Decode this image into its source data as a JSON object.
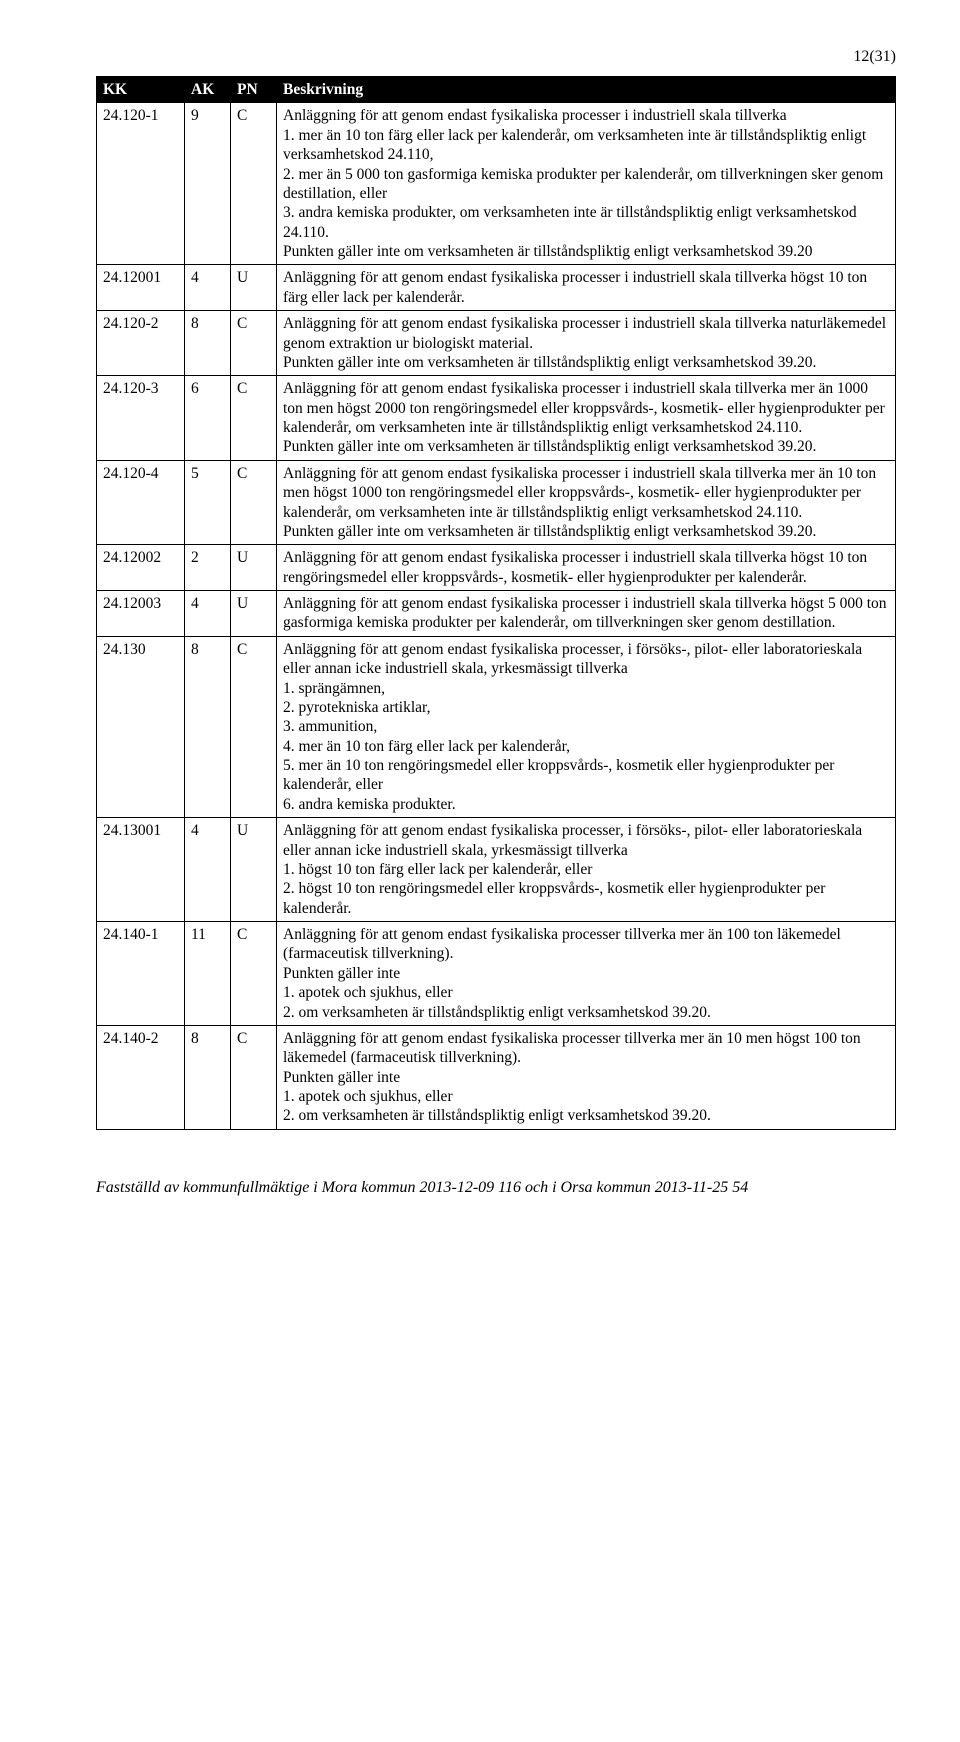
{
  "page_number": "12(31)",
  "columns": {
    "kk": "KK",
    "ak": "AK",
    "pn": "PN",
    "desc": "Beskrivning"
  },
  "rows": [
    {
      "kk": "24.120-1",
      "ak": "9",
      "pn": "C",
      "desc": "Anläggning för att genom endast fysikaliska processer i industriell skala tillverka\n1. mer än 10 ton färg eller lack per kalenderår, om verksamheten inte är tillståndspliktig enligt verksamhetskod 24.110,\n2. mer än 5 000 ton gasformiga kemiska produkter per kalenderår, om tillverkningen sker genom destillation, eller\n3. andra kemiska produkter, om verksamheten inte är tillståndspliktig enligt verksamhetskod 24.110.\nPunkten gäller inte om verksamheten är tillståndspliktig enligt verksamhetskod 39.20"
    },
    {
      "kk": "24.12001",
      "ak": "4",
      "pn": "U",
      "desc": "Anläggning för att genom endast fysikaliska processer i industriell skala tillverka högst 10 ton färg eller lack per kalenderår."
    },
    {
      "kk": "24.120-2",
      "ak": "8",
      "pn": "C",
      "desc": "Anläggning för att genom endast fysikaliska processer i industriell skala tillverka naturläkemedel genom extraktion ur biologiskt material.\nPunkten gäller inte om verksamheten är tillståndspliktig enligt verksamhetskod 39.20."
    },
    {
      "kk": "24.120-3",
      "ak": "6",
      "pn": "C",
      "desc": "Anläggning för att genom endast fysikaliska processer i industriell skala tillverka mer än 1000 ton men högst 2000 ton rengöringsmedel eller kroppsvårds-, kosmetik- eller hygienprodukter per kalenderår, om verksamheten inte är tillståndspliktig enligt verksamhetskod 24.110.\nPunkten gäller inte om verksamheten är tillståndspliktig enligt verksamhetskod 39.20."
    },
    {
      "kk": "24.120-4",
      "ak": "5",
      "pn": "C",
      "desc": "Anläggning för att genom endast fysikaliska processer i industriell skala tillverka mer än 10 ton men högst 1000 ton rengöringsmedel eller kroppsvårds-, kosmetik- eller hygienprodukter per kalenderår, om verksamheten inte är tillståndspliktig enligt verksamhetskod 24.110.\nPunkten gäller inte om verksamheten är tillståndspliktig enligt verksamhetskod 39.20."
    },
    {
      "kk": "24.12002",
      "ak": "2",
      "pn": "U",
      "desc": "Anläggning för att genom endast fysikaliska processer i industriell skala tillverka högst 10 ton rengöringsmedel eller kroppsvårds-, kosmetik- eller hygienprodukter per kalenderår."
    },
    {
      "kk": "24.12003",
      "ak": "4",
      "pn": "U",
      "desc": "Anläggning för att genom endast fysikaliska processer i industriell skala tillverka högst 5 000 ton gasformiga kemiska produkter per kalenderår, om tillverkningen sker genom destillation."
    },
    {
      "kk": "24.130",
      "ak": "8",
      "pn": "C",
      "desc": "Anläggning för att genom endast fysikaliska processer, i försöks-, pilot- eller laboratorieskala eller annan icke industriell skala, yrkesmässigt tillverka\n1. sprängämnen,\n2. pyrotekniska artiklar,\n3. ammunition,\n4. mer än 10 ton färg eller lack per kalenderår,\n5. mer än 10 ton rengöringsmedel eller kroppsvårds-, kosmetik eller hygienprodukter per kalenderår, eller\n6. andra kemiska produkter."
    },
    {
      "kk": "24.13001",
      "ak": "4",
      "pn": "U",
      "desc": "Anläggning för att genom endast fysikaliska processer, i försöks-, pilot- eller laboratorieskala eller annan icke industriell skala, yrkesmässigt tillverka\n1. högst 10 ton färg eller lack per kalenderår, eller\n2. högst 10 ton rengöringsmedel eller kroppsvårds-, kosmetik eller hygienprodukter per kalenderår."
    },
    {
      "kk": "24.140-1",
      "ak": "11",
      "pn": "C",
      "desc": "Anläggning för att genom endast fysikaliska processer tillverka mer än 100 ton läkemedel (farmaceutisk tillverkning).\nPunkten gäller inte\n1. apotek och sjukhus, eller\n2. om verksamheten är tillståndspliktig enligt verksamhetskod 39.20."
    },
    {
      "kk": "24.140-2",
      "ak": "8",
      "pn": "C",
      "desc": "Anläggning för att genom endast fysikaliska processer tillverka mer än 10 men högst 100 ton läkemedel (farmaceutisk tillverkning).\nPunkten gäller inte\n1. apotek och sjukhus, eller\n2. om verksamheten är tillståndspliktig enligt verksamhetskod 39.20."
    }
  ],
  "footer": "Fastställd av kommunfullmäktige i Mora kommun 2013-12-09 116 och i Orsa kommun 2013-11-25 54"
}
